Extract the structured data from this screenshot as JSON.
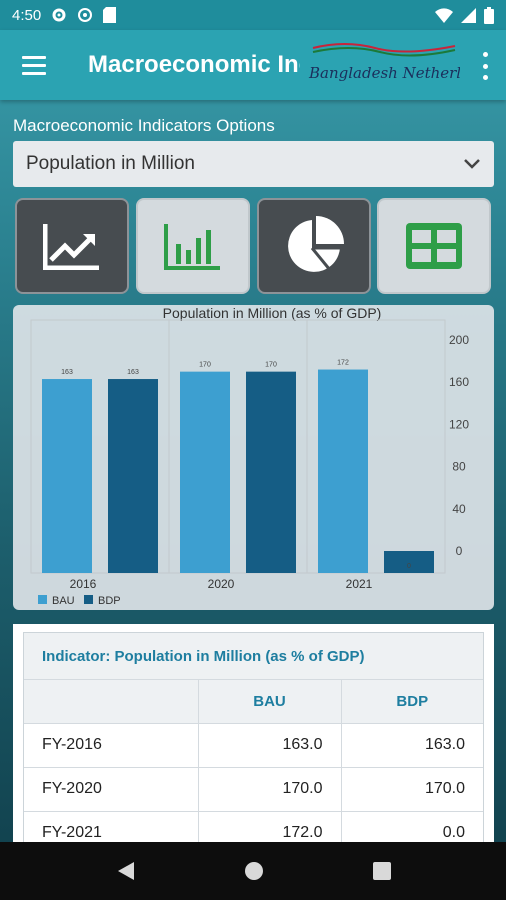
{
  "status": {
    "time": "4:50"
  },
  "app": {
    "title": "Macroeconomic Indicators",
    "logo_text": "Bangladesh Netherlands"
  },
  "options": {
    "label": "Macroeconomic Indicators Options",
    "selected": "Population in Million"
  },
  "chart_types": [
    {
      "name": "line-chart",
      "icon": "trending-up-icon",
      "active": false
    },
    {
      "name": "bar-chart",
      "icon": "bar-chart-icon",
      "active": true
    },
    {
      "name": "pie-chart",
      "icon": "pie-chart-icon",
      "active": false
    },
    {
      "name": "table",
      "icon": "table-icon",
      "active": true
    }
  ],
  "chart_data": {
    "type": "bar",
    "title": "Population in Million (as % of GDP)",
    "categories": [
      "2016",
      "2020",
      "2021"
    ],
    "series": [
      {
        "name": "BAU",
        "values": [
          163,
          170,
          172
        ],
        "labels": [
          "163",
          "170",
          "172"
        ],
        "color": "#3d9fd0"
      },
      {
        "name": "BDP",
        "values": [
          163,
          170,
          0
        ],
        "labels": [
          "163",
          "170",
          "0"
        ],
        "color": "#155d85"
      }
    ],
    "ylim": [
      0,
      200
    ],
    "yticks": [
      "200",
      "160",
      "120",
      "80",
      "40",
      "0"
    ],
    "legend_position": "bottom-left",
    "grid": true
  },
  "table": {
    "indicator": "Indicator: Population in Million (as % of GDP)",
    "headers": [
      "",
      "BAU",
      "BDP"
    ],
    "rows": [
      [
        "FY-2016",
        "163.0",
        "163.0"
      ],
      [
        "FY-2020",
        "170.0",
        "170.0"
      ],
      [
        "FY-2021",
        "172.0",
        "0.0"
      ]
    ]
  },
  "colors": {
    "accent": "#2ba3b2",
    "active_icon": "#2e9e48"
  }
}
